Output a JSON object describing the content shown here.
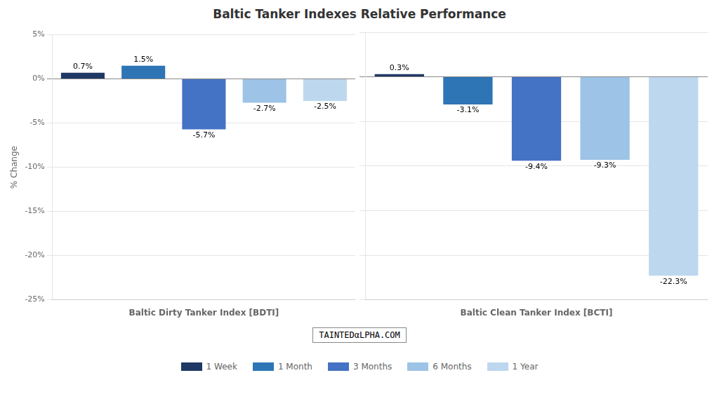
{
  "chart_data": [
    {
      "type": "bar",
      "title": "Baltic Tanker Indexes Relative Performance",
      "annotations": [
        "TAINTEDαLPHA.COM"
      ],
      "xlabel": "Baltic Dirty Tanker Index [BDTI]",
      "ylabel": "% Change",
      "categories": [
        "1 Week",
        "1 Month",
        "3 Months",
        "6 Months",
        "1 Year"
      ],
      "values": [
        0.7,
        1.5,
        -5.7,
        -2.7,
        -2.5
      ],
      "value_labels": [
        "0.7%",
        "1.5%",
        "-5.7%",
        "-2.7%",
        "-2.5%"
      ],
      "colors": [
        "#1F3864",
        "#2E75B6",
        "#4472C4",
        "#9DC3E6",
        "#BDD7EE"
      ],
      "ylim": [
        -25,
        5
      ],
      "yticks": [
        {
          "value": 5,
          "label": "5%"
        },
        {
          "value": 0,
          "label": "0%"
        },
        {
          "value": -5,
          "label": "-5%"
        },
        {
          "value": -10,
          "label": "-10%"
        },
        {
          "value": -15,
          "label": "-15%"
        },
        {
          "value": -20,
          "label": "-20%"
        },
        {
          "value": -25,
          "label": "-25%"
        }
      ],
      "grid": true,
      "legend": "bottom",
      "data_labels": true,
      "tick_labels": "y"
    },
    {
      "type": "bar",
      "xlabel": "Baltic Clean Tanker Index [BCTI]",
      "categories": [
        "1 Week",
        "1 Month",
        "3 Months",
        "6 Months",
        "1 Year"
      ],
      "values": [
        0.3,
        -3.1,
        -9.4,
        -9.3,
        -22.3
      ],
      "value_labels": [
        "0.3%",
        "-3.1%",
        "-9.4%",
        "-9.3%",
        "-22.3%"
      ],
      "colors": [
        "#1F3864",
        "#2E75B6",
        "#4472C4",
        "#9DC3E6",
        "#BDD7EE"
      ],
      "ylim": [
        -25,
        5
      ],
      "yticks": [
        5,
        0,
        -5,
        -10,
        -15,
        -20,
        -25
      ],
      "grid": true,
      "data_labels": true,
      "tick_labels": false
    }
  ]
}
